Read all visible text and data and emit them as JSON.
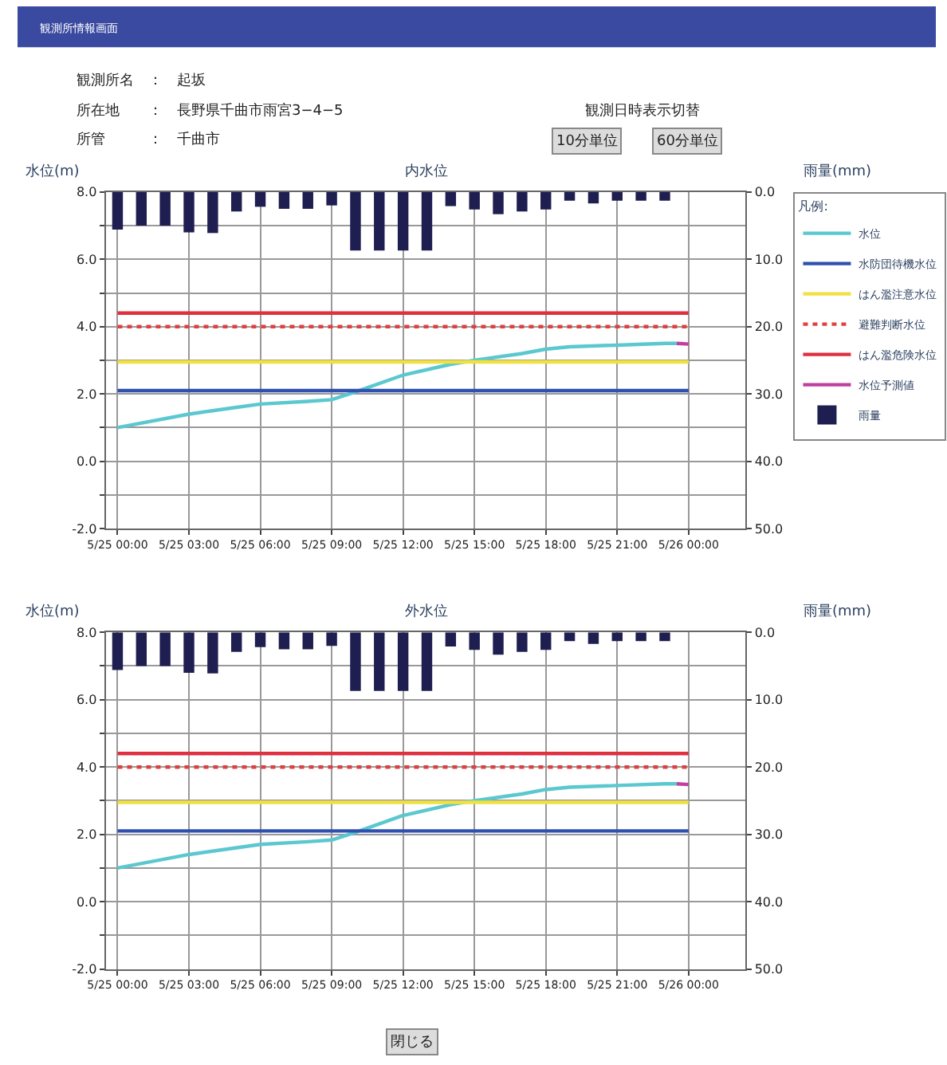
{
  "chart_data": [
    {
      "type": "line",
      "title": "内水位",
      "ylabel": "水位(m)",
      "y2label": "雨量(mm)",
      "legend_title": "凡例:",
      "annotations": [
        "観測所情報画面",
        "観測所名　：　起坂",
        "所在地　　：　長野県千曲市雨宮3−4−5",
        "所管　　　：　千曲市",
        "観測日時表示切替",
        "10分単位",
        "60分単位"
      ],
      "xlim": [
        "--05-24T23:30",
        "--05-26T02:24"
      ],
      "xticks": [
        {
          "value": "--05-25T00:00",
          "label": "5/25 00:00"
        },
        {
          "value": "--05-25T03:00",
          "label": "5/25 03:00"
        },
        {
          "value": "--05-25T06:00",
          "label": "5/25 06:00"
        },
        {
          "value": "--05-25T09:00",
          "label": "5/25 09:00"
        },
        {
          "value": "--05-25T12:00",
          "label": "5/25 12:00"
        },
        {
          "value": "--05-25T15:00",
          "label": "5/25 15:00"
        },
        {
          "value": "--05-25T18:00",
          "label": "5/25 18:00"
        },
        {
          "value": "--05-25T21:00",
          "label": "5/25 21:00"
        },
        {
          "value": "--05-26T00:00",
          "label": "5/26 00:00"
        }
      ],
      "ylim": [
        -2,
        8
      ],
      "yticks": [
        {
          "value": -2,
          "label": "-2.0"
        },
        {
          "value": -1,
          "label": null
        },
        {
          "value": 0,
          "label": "0.0"
        },
        {
          "value": 1,
          "label": null
        },
        {
          "value": 2,
          "label": "2.0"
        },
        {
          "value": 3,
          "label": null
        },
        {
          "value": 4,
          "label": "4.0"
        },
        {
          "value": 5,
          "label": null
        },
        {
          "value": 6,
          "label": "6.0"
        },
        {
          "value": 7,
          "label": null
        },
        {
          "value": 8,
          "label": "8.0"
        }
      ],
      "y2lim": [
        50,
        0
      ],
      "y2ticks": [
        {
          "value": 0,
          "label": "0.0"
        },
        {
          "value": 10,
          "label": "10.0"
        },
        {
          "value": 20,
          "label": "20.0"
        },
        {
          "value": 30,
          "label": "30.0"
        },
        {
          "value": 40,
          "label": "40.0"
        },
        {
          "value": 50,
          "label": "50.0"
        }
      ],
      "grid": true,
      "legend": "right",
      "marker": "none",
      "series": [
        {
          "name": "水位",
          "color": "#5bc8d0",
          "x": [
            "--05-25T00:00",
            "--05-25T03:00",
            "--05-25T05:00",
            "--05-25T06:00",
            "--05-25T08:00",
            "--05-25T09:00",
            "--05-25T10:00",
            "--05-25T12:00",
            "--05-25T14:00",
            "--05-25T15:00",
            "--05-25T17:00",
            "--05-25T18:00",
            "--05-25T19:00",
            "--05-25T21:00",
            "--05-25T23:00",
            "--05-25T23:30"
          ],
          "values": [
            1.0,
            1.4,
            1.6,
            1.7,
            1.78,
            1.83,
            2.06,
            2.56,
            2.88,
            3.0,
            3.2,
            3.33,
            3.4,
            3.45,
            3.5,
            3.5
          ]
        },
        {
          "name": "水防団待機水位",
          "color": "#3050b0",
          "x": [
            "--05-25T00:00",
            "--05-26T00:00"
          ],
          "values": [
            2.1,
            2.1
          ]
        },
        {
          "name": "はん濫注意水位",
          "color": "#f0e040",
          "x": [
            "--05-25T00:00",
            "--05-26T00:00"
          ],
          "values": [
            2.95,
            2.95
          ]
        },
        {
          "name": "避難判断水位",
          "color": "#e04040",
          "line_style": "dotted",
          "x": [
            "--05-25T00:00",
            "--05-26T00:00"
          ],
          "values": [
            4.0,
            4.0
          ]
        },
        {
          "name": "はん濫危険水位",
          "color": "#e03040",
          "x": [
            "--05-25T00:00",
            "--05-26T00:00"
          ],
          "values": [
            4.4,
            4.4
          ]
        },
        {
          "name": "水位予測値",
          "color": "#c040a0",
          "x": [
            "--05-25T23:30",
            "--05-26T00:00"
          ],
          "values": [
            3.5,
            3.48
          ]
        },
        {
          "name": "雨量",
          "type": "bar",
          "axis": "y2",
          "color": "#1e1e50",
          "x": [
            "--05-25T00:00",
            "--05-25T01:00",
            "--05-25T02:00",
            "--05-25T03:00",
            "--05-25T04:00",
            "--05-25T05:00",
            "--05-25T06:00",
            "--05-25T07:00",
            "--05-25T08:00",
            "--05-25T09:00",
            "--05-25T10:00",
            "--05-25T11:00",
            "--05-25T12:00",
            "--05-25T13:00",
            "--05-25T14:00",
            "--05-25T15:00",
            "--05-25T16:00",
            "--05-25T17:00",
            "--05-25T18:00",
            "--05-25T19:00",
            "--05-25T20:00",
            "--05-25T21:00",
            "--05-25T22:00",
            "--05-25T23:00"
          ],
          "values": [
            5.6,
            5.0,
            5.0,
            6.0,
            6.1,
            2.9,
            2.2,
            2.5,
            2.5,
            2.0,
            8.7,
            8.7,
            8.7,
            8.7,
            2.1,
            2.6,
            3.3,
            2.9,
            2.6,
            1.3,
            1.7,
            1.3,
            1.3,
            1.3
          ]
        }
      ]
    },
    {
      "type": "line",
      "title": "外水位",
      "ylabel": "水位(m)",
      "y2label": "雨量(mm)",
      "annotations": [
        "閉じる"
      ],
      "xlim": [
        "--05-24T23:30",
        "--05-26T02:24"
      ],
      "xticks": [
        {
          "value": "--05-25T00:00",
          "label": "5/25 00:00"
        },
        {
          "value": "--05-25T03:00",
          "label": "5/25 03:00"
        },
        {
          "value": "--05-25T06:00",
          "label": "5/25 06:00"
        },
        {
          "value": "--05-25T09:00",
          "label": "5/25 09:00"
        },
        {
          "value": "--05-25T12:00",
          "label": "5/25 12:00"
        },
        {
          "value": "--05-25T15:00",
          "label": "5/25 15:00"
        },
        {
          "value": "--05-25T18:00",
          "label": "5/25 18:00"
        },
        {
          "value": "--05-25T21:00",
          "label": "5/25 21:00"
        },
        {
          "value": "--05-26T00:00",
          "label": "5/26 00:00"
        }
      ],
      "ylim": [
        -2,
        8
      ],
      "yticks": [
        {
          "value": -2,
          "label": "-2.0"
        },
        {
          "value": -1,
          "label": null
        },
        {
          "value": 0,
          "label": "0.0"
        },
        {
          "value": 1,
          "label": null
        },
        {
          "value": 2,
          "label": "2.0"
        },
        {
          "value": 3,
          "label": null
        },
        {
          "value": 4,
          "label": "4.0"
        },
        {
          "value": 5,
          "label": null
        },
        {
          "value": 6,
          "label": "6.0"
        },
        {
          "value": 7,
          "label": null
        },
        {
          "value": 8,
          "label": "8.0"
        }
      ],
      "y2lim": [
        50,
        0
      ],
      "y2ticks": [
        {
          "value": 0,
          "label": "0.0"
        },
        {
          "value": 10,
          "label": "10.0"
        },
        {
          "value": 20,
          "label": "20.0"
        },
        {
          "value": 30,
          "label": "30.0"
        },
        {
          "value": 40,
          "label": "40.0"
        },
        {
          "value": 50,
          "label": "50.0"
        }
      ],
      "grid": true,
      "marker": "none",
      "series": [
        {
          "color": "#5bc8d0",
          "x": [
            "--05-25T00:00",
            "--05-25T03:00",
            "--05-25T05:00",
            "--05-25T06:00",
            "--05-25T08:00",
            "--05-25T09:00",
            "--05-25T10:00",
            "--05-25T12:00",
            "--05-25T14:00",
            "--05-25T15:00",
            "--05-25T17:00",
            "--05-25T18:00",
            "--05-25T19:00",
            "--05-25T21:00",
            "--05-25T23:00",
            "--05-25T23:30"
          ],
          "values": [
            1.0,
            1.4,
            1.6,
            1.7,
            1.78,
            1.83,
            2.06,
            2.56,
            2.88,
            3.0,
            3.2,
            3.33,
            3.4,
            3.45,
            3.5,
            3.5
          ]
        },
        {
          "color": "#3050b0",
          "x": [
            "--05-25T00:00",
            "--05-26T00:00"
          ],
          "values": [
            2.1,
            2.1
          ]
        },
        {
          "color": "#f0e040",
          "x": [
            "--05-25T00:00",
            "--05-26T00:00"
          ],
          "values": [
            2.95,
            2.95
          ]
        },
        {
          "color": "#e04040",
          "line_style": "dotted",
          "x": [
            "--05-25T00:00",
            "--05-26T00:00"
          ],
          "values": [
            4.0,
            4.0
          ]
        },
        {
          "color": "#e03040",
          "x": [
            "--05-25T00:00",
            "--05-26T00:00"
          ],
          "values": [
            4.4,
            4.4
          ]
        },
        {
          "color": "#c040a0",
          "x": [
            "--05-25T23:30",
            "--05-26T00:00"
          ],
          "values": [
            3.5,
            3.48
          ]
        },
        {
          "type": "bar",
          "axis": "y2",
          "color": "#1e1e50",
          "x": [
            "--05-25T00:00",
            "--05-25T01:00",
            "--05-25T02:00",
            "--05-25T03:00",
            "--05-25T04:00",
            "--05-25T05:00",
            "--05-25T06:00",
            "--05-25T07:00",
            "--05-25T08:00",
            "--05-25T09:00",
            "--05-25T10:00",
            "--05-25T11:00",
            "--05-25T12:00",
            "--05-25T13:00",
            "--05-25T14:00",
            "--05-25T15:00",
            "--05-25T16:00",
            "--05-25T17:00",
            "--05-25T18:00",
            "--05-25T19:00",
            "--05-25T20:00",
            "--05-25T21:00",
            "--05-25T22:00",
            "--05-25T23:00"
          ],
          "values": [
            5.6,
            5.0,
            5.0,
            6.0,
            6.1,
            2.9,
            2.2,
            2.5,
            2.5,
            2.0,
            8.7,
            8.7,
            8.7,
            8.7,
            2.1,
            2.6,
            3.3,
            2.9,
            2.6,
            1.3,
            1.7,
            1.3,
            1.3,
            1.3
          ]
        }
      ]
    }
  ]
}
